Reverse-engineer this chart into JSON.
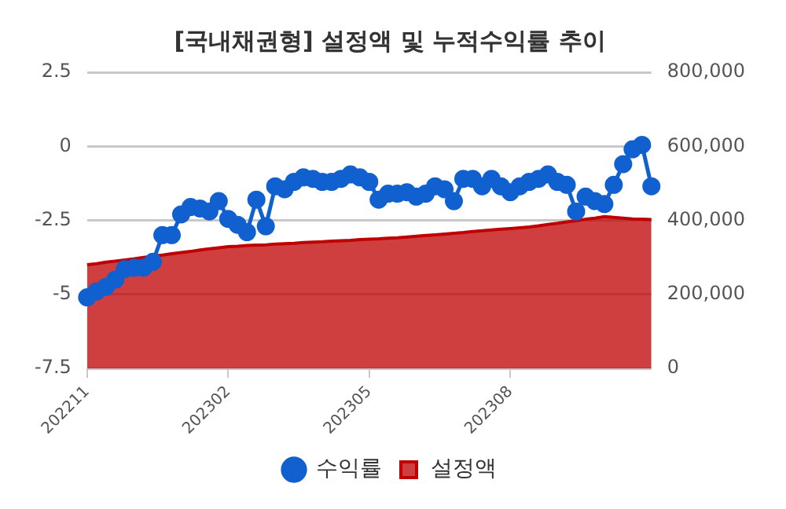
{
  "chart_data": {
    "type": "line",
    "title": "[국내채권형] 설정액 및 누적수익률 추이",
    "categories": [
      "202211",
      null,
      null,
      null,
      null,
      null,
      null,
      null,
      null,
      null,
      null,
      null,
      null,
      null,
      null,
      "202302",
      null,
      null,
      null,
      null,
      null,
      null,
      null,
      null,
      null,
      null,
      null,
      null,
      null,
      null,
      "202305",
      null,
      null,
      null,
      null,
      null,
      null,
      null,
      null,
      null,
      null,
      null,
      null,
      null,
      null,
      "202308",
      null,
      null,
      null,
      null,
      null,
      null,
      null,
      null,
      null,
      null,
      null,
      null,
      null,
      null,
      null
    ],
    "series": [
      {
        "name": "수익률",
        "type": "line",
        "color": "#1060d0",
        "marker": "circle",
        "values": [
          -5.1,
          -4.9,
          -4.75,
          -4.5,
          -4.15,
          -4.1,
          -4.1,
          -3.9,
          -3.0,
          -3.0,
          -2.3,
          -2.05,
          -2.1,
          -2.2,
          -1.85,
          -2.45,
          -2.65,
          -2.9,
          -1.8,
          -2.7,
          -1.35,
          -1.45,
          -1.2,
          -1.05,
          -1.1,
          -1.2,
          -1.2,
          -1.1,
          -0.95,
          -1.05,
          -1.2,
          -1.8,
          -1.6,
          -1.6,
          -1.55,
          -1.7,
          -1.6,
          -1.35,
          -1.45,
          -1.85,
          -1.1,
          -1.1,
          -1.35,
          -1.1,
          -1.35,
          -1.55,
          -1.35,
          -1.2,
          -1.1,
          -0.95,
          -1.2,
          -1.3,
          -2.2,
          -1.7,
          -1.85,
          -1.95,
          -1.3,
          -0.6,
          -0.1,
          0.05,
          -1.35
        ]
      },
      {
        "name": "설정액",
        "type": "area",
        "axis": "y2",
        "color": "#c00000",
        "values": [
          280000,
          283000,
          287000,
          290000,
          293000,
          296000,
          300000,
          303000,
          306000,
          310000,
          313000,
          316000,
          320000,
          323000,
          326000,
          329000,
          330000,
          332000,
          333000,
          334000,
          336000,
          337000,
          338000,
          340000,
          341000,
          342000,
          344000,
          345000,
          346000,
          348000,
          349000,
          350000,
          352000,
          353000,
          355000,
          357000,
          359000,
          361000,
          363000,
          365000,
          367000,
          370000,
          372000,
          374000,
          376000,
          378000,
          380000,
          382000,
          385000,
          389000,
          392000,
          396000,
          399000,
          403000,
          406000,
          410000,
          408000,
          406000,
          404000,
          403000,
          402000
        ]
      }
    ],
    "ylim": [
      -7.5,
      2.5
    ],
    "yticks": [
      2.5,
      0,
      -2.5,
      -5,
      -7.5
    ],
    "y2lim": [
      0,
      800000
    ],
    "y2ticks": [
      {
        "value": 0,
        "label": "0"
      },
      {
        "value": 200000,
        "label": "200,000"
      },
      {
        "value": 400000,
        "label": "400,000"
      },
      {
        "value": 600000,
        "label": "600,000"
      },
      {
        "value": 800000,
        "label": "800,000"
      }
    ],
    "grid": "y",
    "legend": "bottom"
  }
}
